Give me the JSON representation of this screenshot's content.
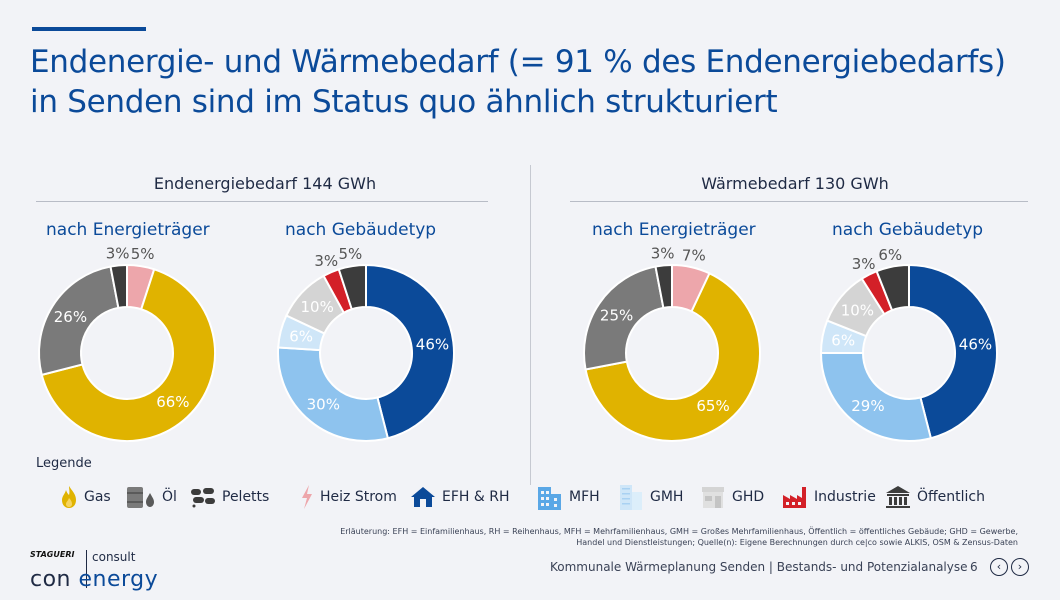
{
  "title": "Endenergie- und Wärmebedarf (= 91 % des Endenergiebedarfs) in Senden sind im Status quo ähnlich strukturiert",
  "colors": {
    "Gas": "#e0b300",
    "Öl": "#7a7a7a",
    "Peletts": "#3c3c3c",
    "Heiz Strom": "#eda6ab",
    "EFH & RH": "#0b4a99",
    "MFH": "#8ec3ee",
    "GMH": "#cfe6f8",
    "GHD": "#d4d4d4",
    "Industrie": "#d32028",
    "Öffentlich": "#3c3c3c"
  },
  "chart_data": [
    {
      "type": "pie",
      "section": "Endenergiebedarf 144 GWh",
      "title": "nach Energieträger",
      "slices": [
        {
          "category": "Heiz Strom",
          "value": 5,
          "label": "5%"
        },
        {
          "category": "Gas",
          "value": 66,
          "label": "66%"
        },
        {
          "category": "Öl",
          "value": 26,
          "label": "26%"
        },
        {
          "category": "Peletts",
          "value": 3,
          "label": "3%"
        }
      ]
    },
    {
      "type": "pie",
      "section": "Endenergiebedarf 144 GWh",
      "title": "nach Gebäudetyp",
      "slices": [
        {
          "category": "EFH & RH",
          "value": 46,
          "label": "46%"
        },
        {
          "category": "MFH",
          "value": 30,
          "label": "30%"
        },
        {
          "category": "GMH",
          "value": 6,
          "label": "6%"
        },
        {
          "category": "GHD",
          "value": 10,
          "label": "10%"
        },
        {
          "category": "Industrie",
          "value": 3,
          "label": "3%"
        },
        {
          "category": "Öffentlich",
          "value": 5,
          "label": "5%"
        }
      ]
    },
    {
      "type": "pie",
      "section": "Wärmebedarf 130 GWh",
      "title": "nach Energieträger",
      "slices": [
        {
          "category": "Heiz Strom",
          "value": 7,
          "label": "7%"
        },
        {
          "category": "Gas",
          "value": 65,
          "label": "65%"
        },
        {
          "category": "Öl",
          "value": 25,
          "label": "25%"
        },
        {
          "category": "Peletts",
          "value": 3,
          "label": "3%"
        }
      ]
    },
    {
      "type": "pie",
      "section": "Wärmebedarf 130 GWh",
      "title": "nach Gebäudetyp",
      "slices": [
        {
          "category": "EFH & RH",
          "value": 46,
          "label": "46%"
        },
        {
          "category": "MFH",
          "value": 29,
          "label": "29%"
        },
        {
          "category": "GMH",
          "value": 6,
          "label": "6%"
        },
        {
          "category": "GHD",
          "value": 10,
          "label": "10%"
        },
        {
          "category": "Industrie",
          "value": 3,
          "label": "3%"
        },
        {
          "category": "Öffentlich",
          "value": 6,
          "label": "6%"
        }
      ]
    }
  ],
  "sections": {
    "left": "Endenergiebedarf 144 GWh",
    "right": "Wärmebedarf 130 GWh"
  },
  "subheads": {
    "a": "nach Energieträger",
    "b": "nach Gebäudetyp",
    "c": "nach Energieträger",
    "d": "nach Gebäudetyp"
  },
  "legend": {
    "title": "Legende",
    "items": [
      {
        "label": "Gas",
        "icon": "flame-icon"
      },
      {
        "label": "Öl",
        "icon": "oil-barrel-icon"
      },
      {
        "label": "Peletts",
        "icon": "pellets-icon"
      },
      {
        "label": "Heiz Strom",
        "icon": "lightning-icon"
      },
      {
        "label": "EFH & RH",
        "icon": "house-icon"
      },
      {
        "label": "MFH",
        "icon": "apartment-building-icon"
      },
      {
        "label": "GMH",
        "icon": "large-building-icon"
      },
      {
        "label": "GHD",
        "icon": "shop-icon"
      },
      {
        "label": "Industrie",
        "icon": "factory-icon"
      },
      {
        "label": "Öffentlich",
        "icon": "public-building-icon"
      }
    ]
  },
  "footnote": "Erläuterung: EFH = Einfamilienhaus, RH = Reihenhaus, MFH = Mehrfamilienhaus, GMH = Großes Mehrfamilienhaus, Öffentlich = öffentliches Gebäude; GHD = Gewerbe, Handel und Dienstleistungen; Quelle(n): Eigene Berechnungen durch ce|co sowie ALKIS, OSM & Zensus-Daten",
  "logo": {
    "small": "STAGUERI",
    "consult": "consult",
    "main_a": "con",
    "main_b": "energy"
  },
  "footer": {
    "text": "Kommunale Wärmeplanung Senden | Bestands- und Potenzialanalyse",
    "page": "6",
    "prev": "‹",
    "next": "›"
  }
}
